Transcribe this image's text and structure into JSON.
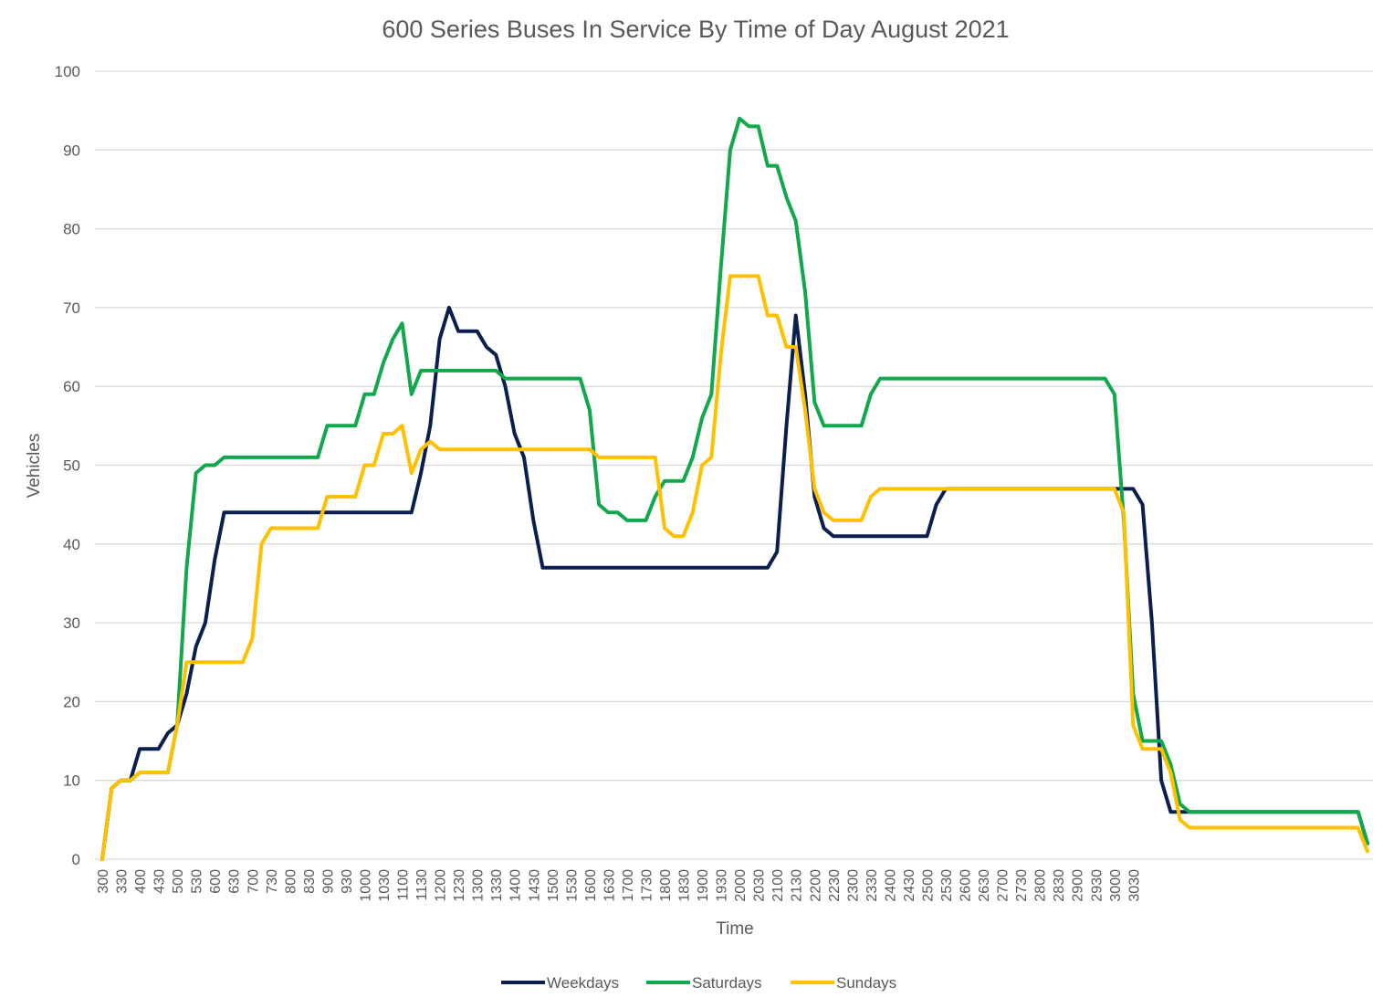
{
  "chart_data": {
    "type": "line",
    "title": "600 Series Buses In Service By Time of Day August 2021",
    "xlabel": "Time",
    "ylabel": "Vehicles",
    "ylim": [
      0,
      100
    ],
    "yticks": [
      0,
      10,
      20,
      30,
      40,
      50,
      60,
      70,
      80,
      90,
      100
    ],
    "grid": true,
    "legend_position": "bottom",
    "x_tick_labels": [
      "300",
      "330",
      "400",
      "430",
      "500",
      "530",
      "600",
      "630",
      "700",
      "730",
      "800",
      "830",
      "900",
      "930",
      "1000",
      "1030",
      "1100",
      "1130",
      "1200",
      "1230",
      "1300",
      "1330",
      "1400",
      "1430",
      "1500",
      "1530",
      "1600",
      "1630",
      "1700",
      "1730",
      "1800",
      "1830",
      "1900",
      "1930",
      "2000",
      "2030",
      "2100",
      "2130",
      "2200",
      "2230",
      "2300",
      "2330",
      "2400",
      "2430",
      "2500",
      "2530",
      "2600",
      "2630",
      "2700",
      "2730",
      "2800",
      "2830",
      "2900",
      "2930",
      "3000",
      "3030"
    ],
    "x_points_per_tick": 2,
    "series": [
      {
        "name": "Weekdays",
        "color": "#0b1f4f",
        "values": [
          0,
          9,
          10,
          10,
          14,
          14,
          14,
          16,
          17,
          21,
          27,
          30,
          38,
          44,
          44,
          44,
          44,
          44,
          44,
          44,
          44,
          44,
          44,
          44,
          44,
          44,
          44,
          44,
          44,
          44,
          44,
          44,
          44,
          44,
          49,
          55,
          66,
          70,
          67,
          67,
          67,
          65,
          64,
          60,
          54,
          51,
          43,
          37,
          37,
          37,
          37,
          37,
          37,
          37,
          37,
          37,
          37,
          37,
          37,
          37,
          37,
          37,
          37,
          37,
          37,
          37,
          37,
          37,
          37,
          37,
          37,
          37,
          39,
          55,
          69,
          59,
          46,
          42,
          41,
          41,
          41,
          41,
          41,
          41,
          41,
          41,
          41,
          41,
          41,
          45,
          47,
          47,
          47,
          47,
          47,
          47,
          47,
          47,
          47,
          47,
          47,
          47,
          47,
          47,
          47,
          47,
          47,
          47,
          47,
          47,
          47,
          45,
          30,
          10,
          6,
          6,
          6,
          6,
          6,
          6,
          6,
          6,
          6,
          6,
          6,
          6,
          6,
          6,
          6,
          6,
          6,
          6,
          6,
          6,
          6,
          2
        ]
      },
      {
        "name": "Saturdays",
        "color": "#10a84a",
        "values": [
          0,
          9,
          10,
          10,
          11,
          11,
          11,
          11,
          17,
          37,
          49,
          50,
          50,
          51,
          51,
          51,
          51,
          51,
          51,
          51,
          51,
          51,
          51,
          51,
          55,
          55,
          55,
          55,
          59,
          59,
          63,
          66,
          68,
          59,
          62,
          62,
          62,
          62,
          62,
          62,
          62,
          62,
          62,
          61,
          61,
          61,
          61,
          61,
          61,
          61,
          61,
          61,
          57,
          45,
          44,
          44,
          43,
          43,
          43,
          46,
          48,
          48,
          48,
          51,
          56,
          59,
          75,
          90,
          94,
          93,
          93,
          88,
          88,
          84,
          81,
          72,
          58,
          55,
          55,
          55,
          55,
          55,
          59,
          61,
          61,
          61,
          61,
          61,
          61,
          61,
          61,
          61,
          61,
          61,
          61,
          61,
          61,
          61,
          61,
          61,
          61,
          61,
          61,
          61,
          61,
          61,
          61,
          61,
          59,
          43,
          21,
          15,
          15,
          15,
          12,
          7,
          6,
          6,
          6,
          6,
          6,
          6,
          6,
          6,
          6,
          6,
          6,
          6,
          6,
          6,
          6,
          6,
          6,
          6,
          6,
          2
        ]
      },
      {
        "name": "Sundays",
        "color": "#ffc000",
        "values": [
          0,
          9,
          10,
          10,
          11,
          11,
          11,
          11,
          17,
          25,
          25,
          25,
          25,
          25,
          25,
          25,
          28,
          40,
          42,
          42,
          42,
          42,
          42,
          42,
          46,
          46,
          46,
          46,
          50,
          50,
          54,
          54,
          55,
          49,
          52,
          53,
          52,
          52,
          52,
          52,
          52,
          52,
          52,
          52,
          52,
          52,
          52,
          52,
          52,
          52,
          52,
          52,
          52,
          51,
          51,
          51,
          51,
          51,
          51,
          51,
          42,
          41,
          41,
          44,
          50,
          51,
          64,
          74,
          74,
          74,
          74,
          69,
          69,
          65,
          65,
          57,
          47,
          44,
          43,
          43,
          43,
          43,
          46,
          47,
          47,
          47,
          47,
          47,
          47,
          47,
          47,
          47,
          47,
          47,
          47,
          47,
          47,
          47,
          47,
          47,
          47,
          47,
          47,
          47,
          47,
          47,
          47,
          47,
          47,
          44,
          17,
          14,
          14,
          14,
          11,
          5,
          4,
          4,
          4,
          4,
          4,
          4,
          4,
          4,
          4,
          4,
          4,
          4,
          4,
          4,
          4,
          4,
          4,
          4,
          4,
          1
        ]
      }
    ]
  }
}
